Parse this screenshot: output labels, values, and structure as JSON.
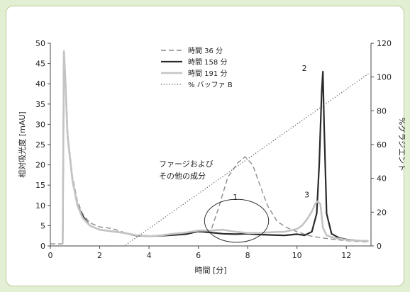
{
  "chart_data": {
    "type": "line",
    "title": "",
    "xlabel": "時間 [分]",
    "ylabel": "相対吸光度 [mAU]",
    "y2label": "%グラジエント",
    "xlim": [
      0,
      13
    ],
    "ylim": [
      0,
      50
    ],
    "y2lim": [
      0,
      120
    ],
    "xticks": [
      0,
      2,
      4,
      6,
      8,
      10,
      12
    ],
    "yticks": [
      0,
      5,
      10,
      15,
      20,
      25,
      30,
      35,
      40,
      45,
      50
    ],
    "y2ticks": [
      0,
      20,
      40,
      60,
      80,
      100,
      120
    ],
    "grid": false,
    "legend_position": "top-center",
    "series": [
      {
        "name": "時間 36 分",
        "style": "dashed",
        "color": "#8c8c8c",
        "axis": "left",
        "x": [
          0.0,
          0.5,
          0.55,
          0.6,
          0.7,
          0.9,
          1.1,
          1.3,
          1.6,
          2.0,
          2.5,
          3.0,
          3.5,
          4.0,
          4.5,
          5.0,
          5.5,
          6.0,
          6.5,
          6.8,
          7.2,
          7.6,
          7.9,
          8.2,
          8.5,
          8.8,
          9.2,
          9.6,
          10.0,
          10.5,
          11.0,
          11.5,
          12.0,
          12.5,
          12.9
        ],
        "y": [
          0.5,
          0.5,
          48,
          42,
          28,
          17,
          11,
          8,
          5.7,
          4.7,
          4.3,
          3.3,
          2.7,
          2.5,
          2.6,
          2.9,
          3.2,
          3.4,
          3.6,
          9,
          17,
          20.5,
          22,
          20,
          15,
          10,
          6,
          4.5,
          3.5,
          2.5,
          2,
          1.6,
          1.3,
          1.1,
          1.0
        ]
      },
      {
        "name": "時間 158 分",
        "style": "solid",
        "color": "#2a2a2a",
        "axis": "left",
        "x": [
          0.5,
          0.55,
          0.6,
          0.7,
          0.9,
          1.1,
          1.3,
          1.6,
          2.0,
          2.5,
          3.0,
          3.5,
          4.0,
          4.5,
          5.0,
          5.5,
          6.0,
          6.5,
          7.0,
          7.5,
          8.0,
          8.5,
          9.0,
          9.5,
          10.0,
          10.3,
          10.6,
          10.8,
          10.9,
          11.0,
          11.05,
          11.1,
          11.2,
          11.4,
          11.7,
          12.0,
          12.5,
          12.9
        ],
        "y": [
          0.5,
          48,
          42,
          27,
          16,
          10,
          7.5,
          5,
          4,
          3.6,
          3.2,
          2.5,
          2.4,
          2.5,
          2.7,
          2.9,
          3.6,
          3.3,
          3.0,
          2.9,
          3.0,
          2.8,
          2.7,
          2.6,
          2.9,
          2.6,
          3.5,
          8,
          20,
          38,
          43,
          30,
          8,
          3,
          2,
          1.6,
          1.3,
          1.2
        ]
      },
      {
        "name": "時間 191 分",
        "style": "solid",
        "color": "#c4c4c4",
        "axis": "left",
        "x": [
          0.5,
          0.55,
          0.6,
          0.7,
          0.9,
          1.1,
          1.3,
          1.6,
          2.0,
          2.5,
          3.0,
          3.5,
          4.0,
          4.5,
          5.0,
          5.5,
          6.0,
          6.5,
          7.0,
          7.5,
          8.0,
          8.5,
          9.0,
          9.5,
          10.0,
          10.2,
          10.4,
          10.6,
          10.75,
          10.85,
          10.95,
          11.05,
          11.2,
          11.5,
          12.0,
          12.5,
          12.9
        ],
        "y": [
          0.5,
          48,
          42,
          27,
          16,
          10,
          7,
          5,
          4,
          3.6,
          3.2,
          2.6,
          2.4,
          2.6,
          3.0,
          3.3,
          3.8,
          3.8,
          4.0,
          3.5,
          3.2,
          3.2,
          3.4,
          3.5,
          4.2,
          5.0,
          6.5,
          8.5,
          10.5,
          11.0,
          10.3,
          4.5,
          2.6,
          2.0,
          1.5,
          1.3,
          1.2
        ]
      },
      {
        "name": "% バッファ B",
        "style": "dotted",
        "color": "#555555",
        "axis": "right",
        "x": [
          0.0,
          3.0,
          12.9
        ],
        "y": [
          0.0,
          0.0,
          102
        ]
      }
    ],
    "annotations": [
      {
        "text": "ファージおよび",
        "x": 4.4,
        "y": 19.6
      },
      {
        "text": "その他の成分",
        "x": 4.4,
        "y": 16.6
      },
      {
        "text": "1",
        "x": 7.4,
        "y": 11.4
      },
      {
        "text": "2",
        "x": 10.2,
        "y": 43.2
      },
      {
        "text": "3",
        "x": 10.3,
        "y": 12.0
      }
    ],
    "ellipse": {
      "cx": 7.55,
      "cy": 6.2,
      "rx": 1.3,
      "ry": 5.3
    }
  }
}
